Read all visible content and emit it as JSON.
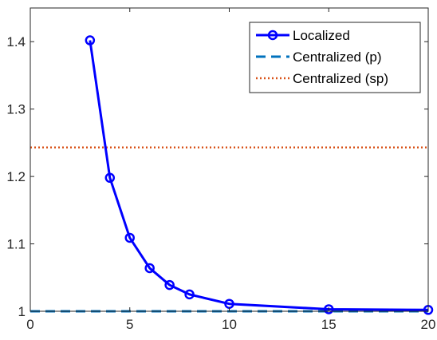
{
  "chart_data": {
    "type": "line",
    "xlim": [
      0,
      20
    ],
    "ylim": [
      1.0,
      1.45
    ],
    "x_ticks": [
      0,
      5,
      10,
      15,
      20
    ],
    "y_ticks": [
      1,
      1.1,
      1.2,
      1.3,
      1.4
    ],
    "x_tick_labels": [
      "0",
      "5",
      "10",
      "15",
      "20"
    ],
    "y_tick_labels": [
      "1",
      "1.1",
      "1.2",
      "1.3",
      "1.4"
    ],
    "grid": false,
    "legend_position": "top-right",
    "series": [
      {
        "name": "Localized",
        "style": "solid-with-circle-markers",
        "color": "#0000ff",
        "x": [
          3,
          4,
          5,
          6,
          7,
          8,
          10,
          15,
          20
        ],
        "y": [
          1.402,
          1.198,
          1.109,
          1.064,
          1.039,
          1.025,
          1.011,
          1.003,
          1.002
        ]
      },
      {
        "name": "Centralized (p)",
        "style": "dashed",
        "color": "#0072bd",
        "x": [
          0,
          20
        ],
        "y": [
          1.0,
          1.0
        ]
      },
      {
        "name": "Centralized (sp)",
        "style": "dotted",
        "color": "#d95319",
        "x": [
          0,
          20
        ],
        "y": [
          1.243,
          1.243
        ]
      }
    ]
  }
}
